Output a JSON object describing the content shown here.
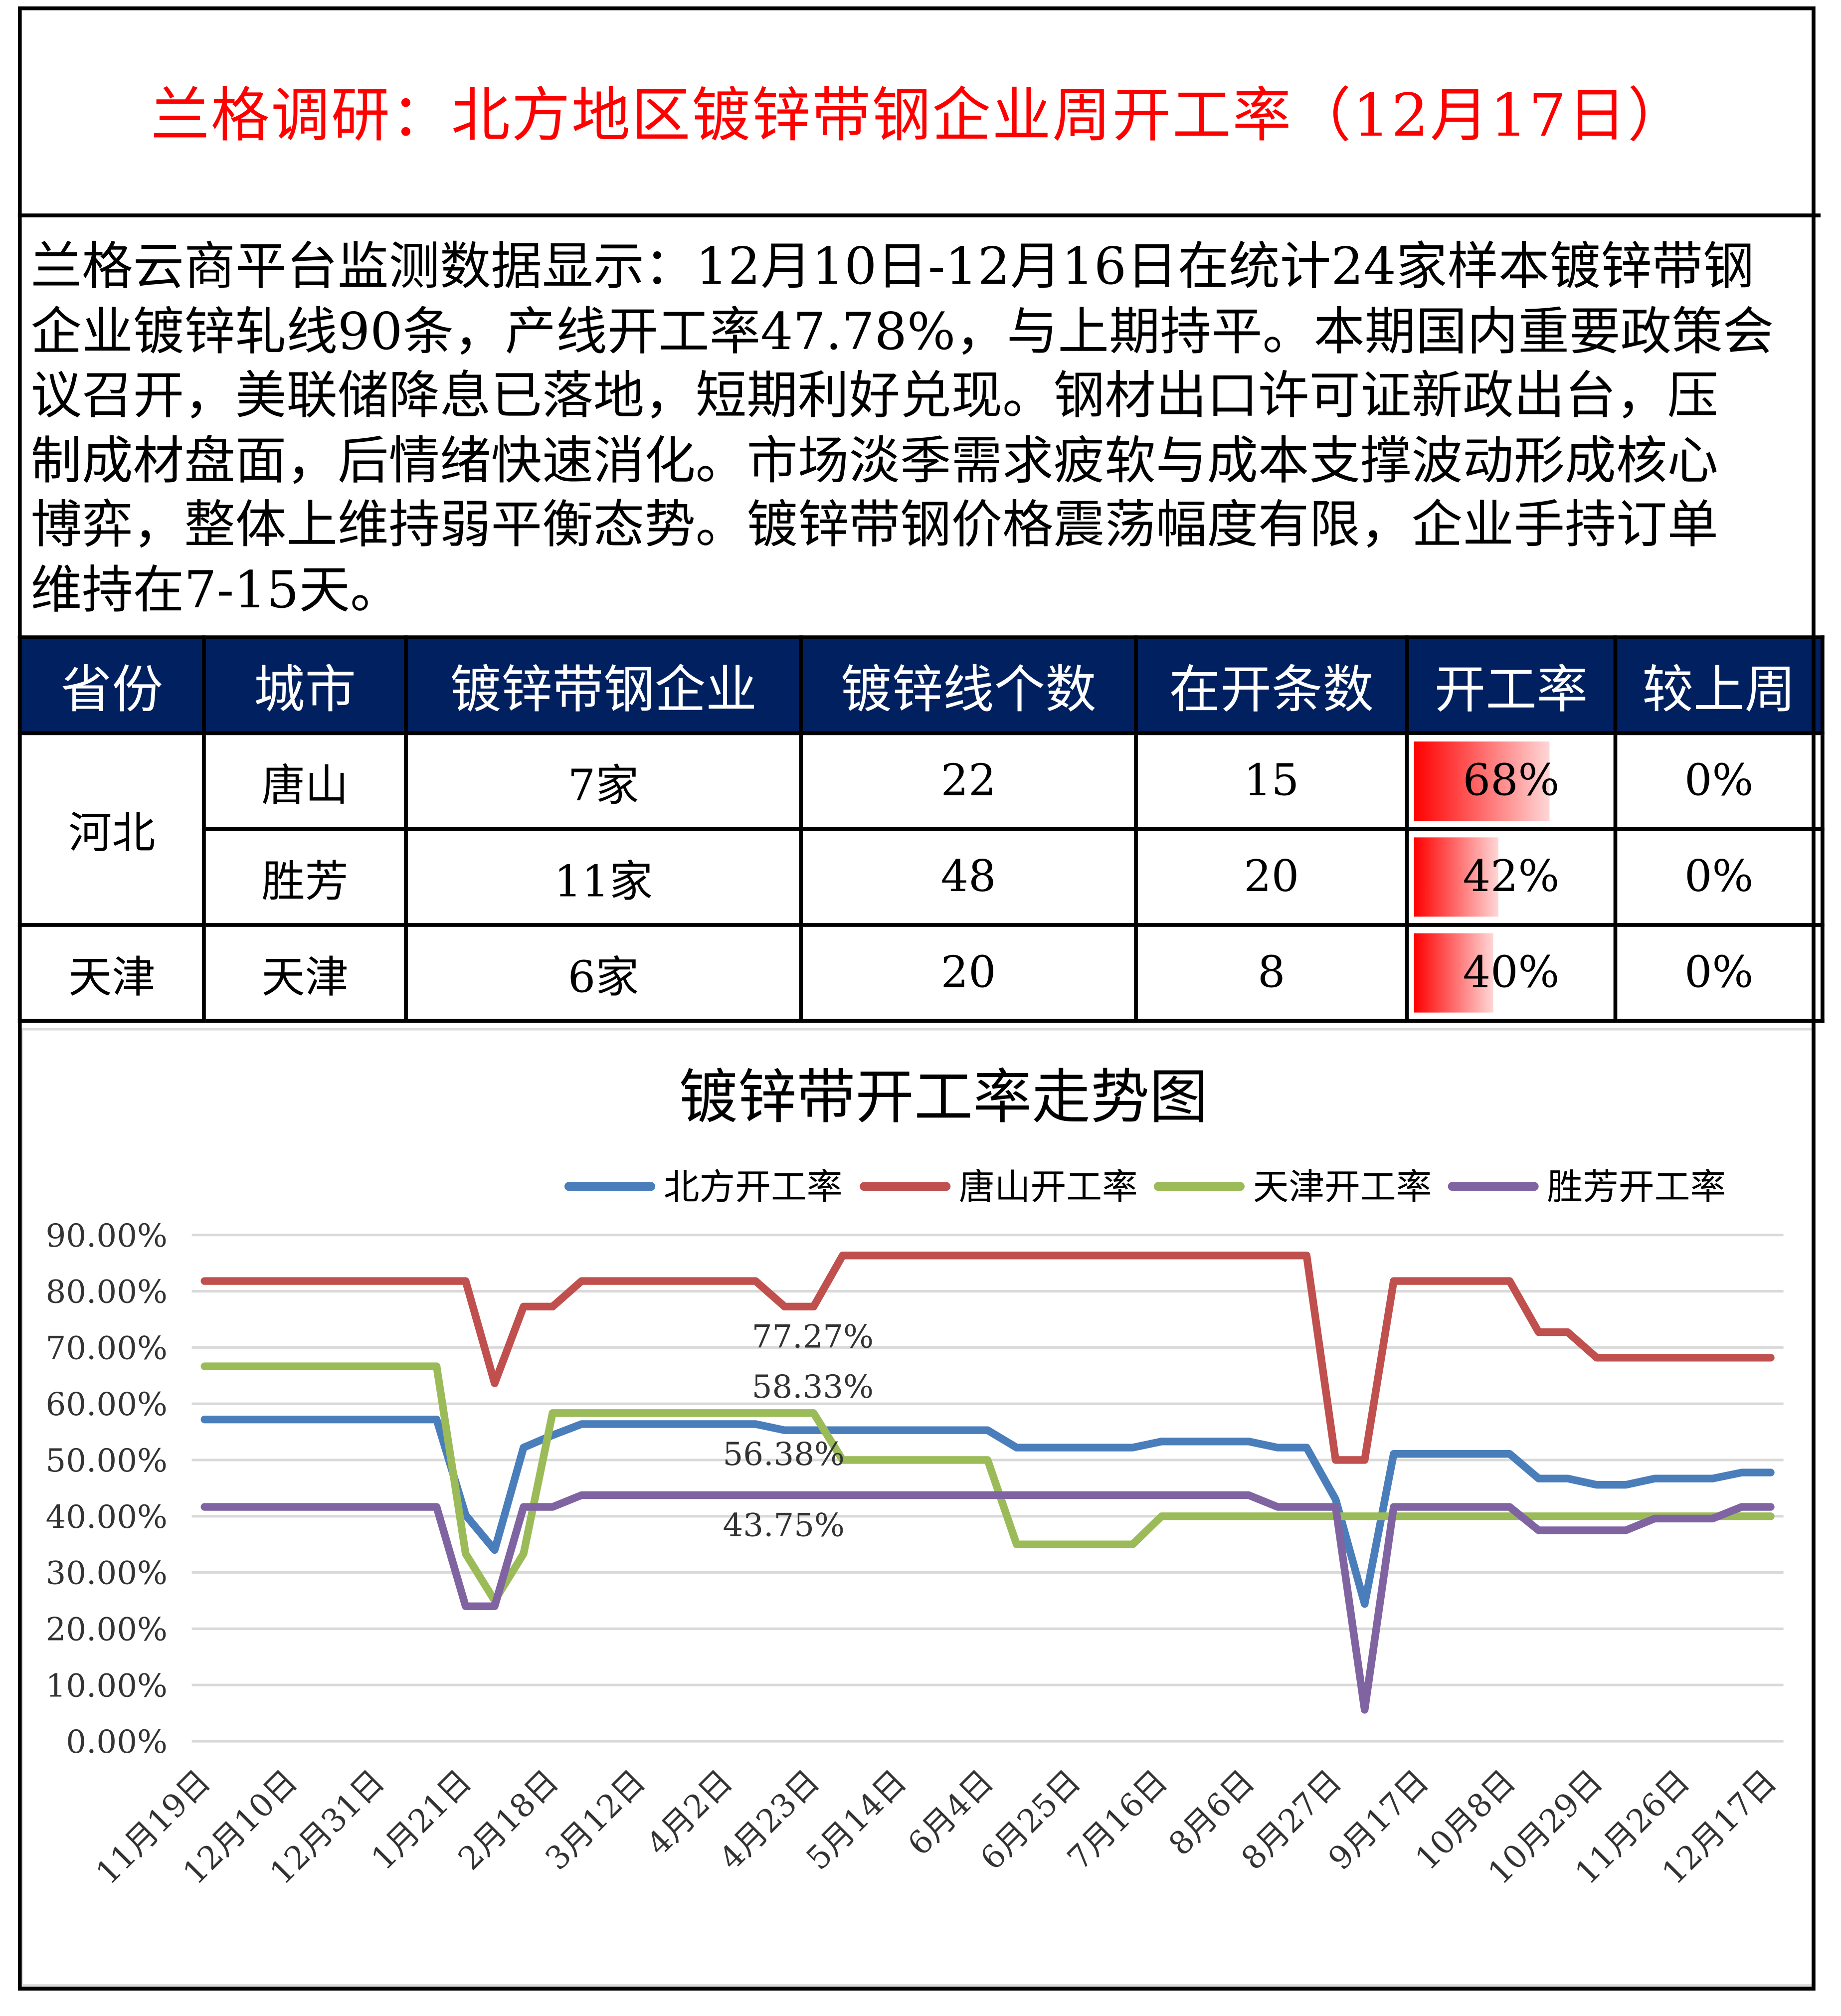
{
  "header": {
    "title": "兰格调研：北方地区镀锌带钢企业周开工率（12月17日）"
  },
  "summary": {
    "lines": [
      "兰格云商平台监测数据显示：12月10日-12月16日在统计24家样本镀锌带钢",
      "企业镀锌轧线90条，产线开工率47.78%，与上期持平。本期国内重要政策会",
      "议召开，美联储降息已落地，短期利好兑现。钢材出口许可证新政出台，压",
      "制成材盘面，后情绪快速消化。市场淡季需求疲软与成本支撑波动形成核心",
      "博弈，整体上维持弱平衡态势。镀锌带钢价格震荡幅度有限，企业手持订单",
      "维持在7-15天。"
    ]
  },
  "table": {
    "headers": [
      "省份",
      "城市",
      "镀锌带钢企业",
      "镀锌线个数",
      "在开条数",
      "开工率",
      "较上周"
    ],
    "rows": [
      {
        "province": "河北",
        "city": "唐山",
        "companies": "7家",
        "lines": "22",
        "running": "15",
        "rate": "68%",
        "rate_value": 68,
        "wow": "0%"
      },
      {
        "province": "河北",
        "city": "胜芳",
        "companies": "11家",
        "lines": "48",
        "running": "20",
        "rate": "42%",
        "rate_value": 42,
        "wow": "0%"
      },
      {
        "province": "天津",
        "city": "天津",
        "companies": "6家",
        "lines": "20",
        "running": "8",
        "rate": "40%",
        "rate_value": 40,
        "wow": "0%"
      }
    ]
  },
  "chart_data": {
    "type": "line",
    "title": "镀锌带开工率走势图",
    "xlabel": "",
    "ylabel": "",
    "ylim": [
      0,
      90
    ],
    "yticks": [
      "0.00%",
      "10.00%",
      "20.00%",
      "30.00%",
      "40.00%",
      "50.00%",
      "60.00%",
      "70.00%",
      "80.00%",
      "90.00%"
    ],
    "grid": true,
    "legend_position": "top-right",
    "n_points": 55,
    "xtick_every": 3,
    "xtick_labels": [
      "11月19日",
      "12月10日",
      "12月31日",
      "1月21日",
      "2月18日",
      "3月12日",
      "4月2日",
      "4月23日",
      "5月14日",
      "6月4日",
      "6月25日",
      "7月16日",
      "8月6日",
      "8月27日",
      "9月17日",
      "10月8日",
      "10月29日",
      "11月26日",
      "12月17日"
    ],
    "series": [
      {
        "name": "北方开工率",
        "color": "#4a7ebb",
        "values": [
          57.2,
          57.2,
          57.2,
          57.2,
          57.2,
          57.2,
          57.2,
          57.2,
          57.2,
          40.2,
          34.0,
          52.2,
          54.4,
          56.38,
          56.38,
          56.38,
          56.38,
          56.38,
          56.38,
          56.38,
          55.3,
          55.3,
          55.3,
          55.3,
          55.3,
          55.3,
          55.3,
          55.3,
          52.2,
          52.2,
          52.2,
          52.2,
          52.2,
          53.3,
          53.3,
          53.3,
          53.3,
          52.2,
          52.2,
          43.0,
          24.4,
          51.1,
          51.1,
          51.1,
          51.1,
          51.1,
          46.7,
          46.7,
          45.6,
          45.6,
          46.7,
          46.7,
          46.7,
          47.78,
          47.78
        ]
      },
      {
        "name": "唐山开工率",
        "color": "#c0504d",
        "values": [
          81.82,
          81.82,
          81.82,
          81.82,
          81.82,
          81.82,
          81.82,
          81.82,
          81.82,
          81.82,
          63.64,
          77.27,
          77.27,
          81.82,
          81.82,
          81.82,
          81.82,
          81.82,
          81.82,
          81.82,
          77.27,
          77.27,
          86.36,
          86.36,
          86.36,
          86.36,
          86.36,
          86.36,
          86.36,
          86.36,
          86.36,
          86.36,
          86.36,
          86.36,
          86.36,
          86.36,
          86.36,
          86.36,
          86.36,
          50.0,
          50.0,
          81.82,
          81.82,
          81.82,
          81.82,
          81.82,
          72.73,
          72.73,
          68.18,
          68.18,
          68.18,
          68.18,
          68.18,
          68.18,
          68.18
        ]
      },
      {
        "name": "天津开工率",
        "color": "#9bbb59",
        "values": [
          66.67,
          66.67,
          66.67,
          66.67,
          66.67,
          66.67,
          66.67,
          66.67,
          66.67,
          33.33,
          25.0,
          33.33,
          58.33,
          58.33,
          58.33,
          58.33,
          58.33,
          58.33,
          58.33,
          58.33,
          58.33,
          58.33,
          50.0,
          50.0,
          50.0,
          50.0,
          50.0,
          50.0,
          35.0,
          35.0,
          35.0,
          35.0,
          35.0,
          40.0,
          40.0,
          40.0,
          40.0,
          40.0,
          40.0,
          40.0,
          40.0,
          40.0,
          40.0,
          40.0,
          40.0,
          40.0,
          40.0,
          40.0,
          40.0,
          40.0,
          40.0,
          40.0,
          40.0,
          40.0,
          40.0
        ]
      },
      {
        "name": "胜芳开工率",
        "color": "#8064a2",
        "values": [
          41.67,
          41.67,
          41.67,
          41.67,
          41.67,
          41.67,
          41.67,
          41.67,
          41.67,
          24.0,
          24.0,
          41.67,
          41.67,
          43.75,
          43.75,
          43.75,
          43.75,
          43.75,
          43.75,
          43.75,
          43.75,
          43.75,
          43.75,
          43.75,
          43.75,
          43.75,
          43.75,
          43.75,
          43.75,
          43.75,
          43.75,
          43.75,
          43.75,
          43.75,
          43.75,
          43.75,
          43.75,
          41.67,
          41.67,
          41.67,
          5.6,
          41.67,
          41.67,
          41.67,
          41.67,
          41.67,
          37.5,
          37.5,
          37.5,
          37.5,
          39.58,
          39.58,
          39.58,
          41.67,
          41.67
        ]
      }
    ],
    "annotations": [
      {
        "series": 1,
        "index": 20,
        "text": "77.27%",
        "place": "below"
      },
      {
        "series": 2,
        "index": 20,
        "text": "58.33%",
        "place": "above"
      },
      {
        "series": 0,
        "index": 19,
        "text": "56.38%",
        "place": "below"
      },
      {
        "series": 3,
        "index": 19,
        "text": "43.75%",
        "place": "below"
      }
    ]
  }
}
